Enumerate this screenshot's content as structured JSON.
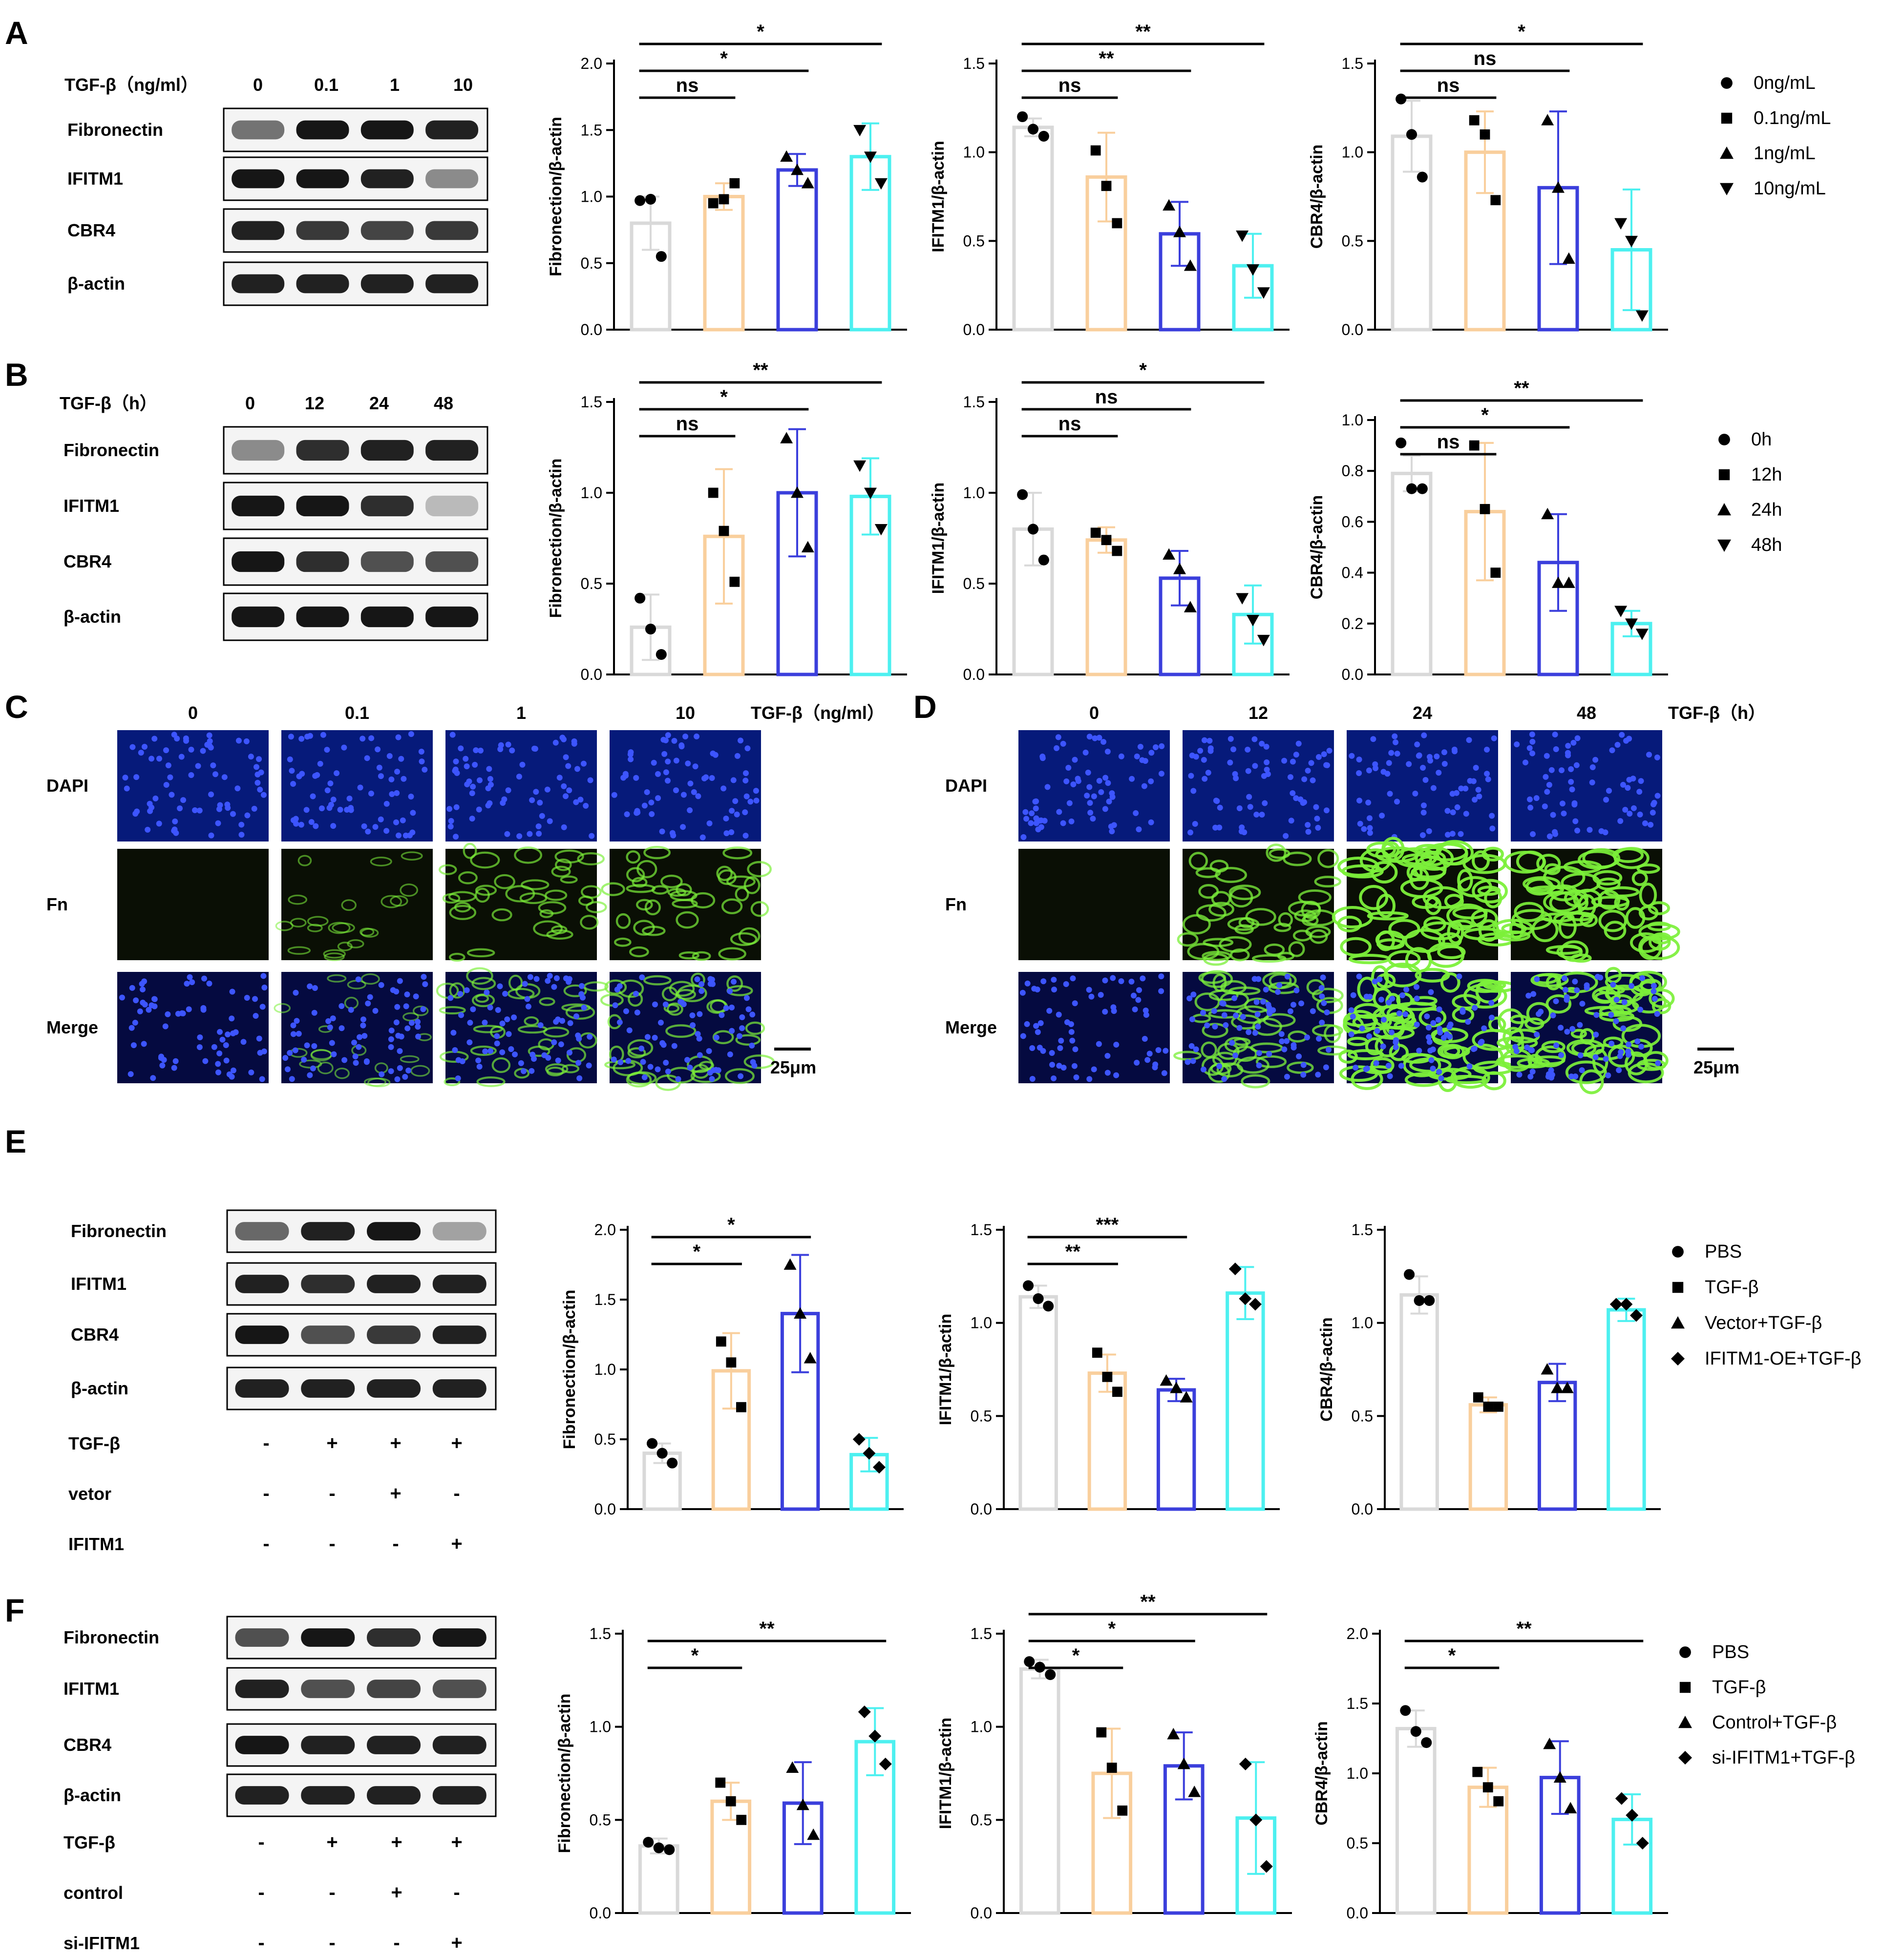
{
  "figure": {
    "colors": {
      "bar1": "#d9d9d9",
      "bar2": "#f9cf9d",
      "bar3": "#3b3fdc",
      "bar4": "#4df0f0",
      "dapi_bg": "#061a7a",
      "dapi_nuc": "#3d55ff",
      "fn_green": "#7cf03a"
    },
    "panel_A": {
      "letter": "A",
      "header_label": "TGF-β（ng/ml）",
      "lanes": [
        "0",
        "0.1",
        "1",
        "10"
      ],
      "rows": [
        "Fibronectin",
        "IFITM1",
        "CBR4",
        "β-actin"
      ],
      "legend": [
        "0ng/mL",
        "0.1ng/mL",
        "1ng/mL",
        "10ng/mL"
      ]
    },
    "panel_B": {
      "letter": "B",
      "header_label": "TGF-β（h）",
      "lanes": [
        "0",
        "12",
        "24",
        "48"
      ],
      "rows": [
        "Fibronectin",
        "IFITM1",
        "CBR4",
        "β-actin"
      ],
      "legend": [
        "0h",
        "12h",
        "24h",
        "48h"
      ]
    },
    "panel_C": {
      "letter": "C",
      "columns": [
        "0",
        "0.1",
        "1",
        "10"
      ],
      "header_label": "TGF-β（ng/ml）",
      "rows": [
        "DAPI",
        "Fn",
        "Merge"
      ],
      "fn_intensity": [
        0.04,
        0.35,
        0.55,
        0.6
      ],
      "scalebar": "25μm"
    },
    "panel_D": {
      "letter": "D",
      "columns": [
        "0",
        "12",
        "24",
        "48"
      ],
      "header_label": "TGF-β（h）",
      "rows": [
        "DAPI",
        "Fn",
        "Merge"
      ],
      "fn_intensity": [
        0.04,
        0.7,
        1.0,
        0.95
      ],
      "scalebar": "25μm"
    },
    "panel_E": {
      "letter": "E",
      "rows": [
        "Fibronectin",
        "IFITM1",
        "CBR4",
        "β-actin"
      ],
      "treatments": [
        {
          "label": "TGF-β",
          "marks": [
            "-",
            "+",
            "+",
            "+"
          ]
        },
        {
          "label": "vetor",
          "marks": [
            "-",
            "-",
            "+",
            "-"
          ]
        },
        {
          "label": "IFITM1",
          "marks": [
            "-",
            "-",
            "-",
            "+"
          ]
        }
      ],
      "legend": [
        "PBS",
        "TGF-β",
        "Vector+TGF-β",
        "IFITM1-OE+TGF-β"
      ]
    },
    "panel_F": {
      "letter": "F",
      "rows": [
        "Fibronectin",
        "IFITM1",
        "CBR4",
        "β-actin"
      ],
      "treatments": [
        {
          "label": "TGF-β",
          "marks": [
            "-",
            "+",
            "+",
            "+"
          ]
        },
        {
          "label": "control",
          "marks": [
            "-",
            "-",
            "+",
            "-"
          ]
        },
        {
          "label": "si-IFITM1",
          "marks": [
            "-",
            "-",
            "-",
            "+"
          ]
        }
      ],
      "legend": [
        "PBS",
        "TGF-β",
        "Control+TGF-β",
        "si-IFITM1+TGF-β"
      ]
    }
  },
  "chart_data": [
    {
      "id": "A1",
      "type": "bar",
      "ylabel": "Fibronection/β-actin",
      "ylim": [
        0,
        2.0
      ],
      "yticks": [
        0,
        0.5,
        1.0,
        1.5,
        2.0
      ],
      "values": [
        0.8,
        1.0,
        1.2,
        1.3
      ],
      "errors": [
        0.2,
        0.1,
        0.12,
        0.25
      ],
      "points": [
        [
          0.97,
          0.98,
          0.55
        ],
        [
          0.95,
          0.98,
          1.1
        ],
        [
          1.3,
          1.2,
          1.1
        ],
        [
          1.5,
          1.3,
          1.1
        ]
      ],
      "sig": [
        {
          "from": 0,
          "to": 1,
          "label": "ns"
        },
        {
          "from": 0,
          "to": 2,
          "label": "*"
        },
        {
          "from": 0,
          "to": 3,
          "label": "*"
        }
      ]
    },
    {
      "id": "A2",
      "type": "bar",
      "ylabel": "IFITM1/β-actin",
      "ylim": [
        0,
        1.5
      ],
      "yticks": [
        0,
        0.5,
        1.0,
        1.5
      ],
      "values": [
        1.14,
        0.86,
        0.54,
        0.36
      ],
      "errors": [
        0.05,
        0.25,
        0.18,
        0.18
      ],
      "points": [
        [
          1.2,
          1.13,
          1.09
        ],
        [
          1.01,
          0.81,
          0.6
        ],
        [
          0.7,
          0.55,
          0.36
        ],
        [
          0.53,
          0.34,
          0.21
        ]
      ],
      "sig": [
        {
          "from": 0,
          "to": 1,
          "label": "ns"
        },
        {
          "from": 0,
          "to": 2,
          "label": "**"
        },
        {
          "from": 0,
          "to": 3,
          "label": "**"
        }
      ]
    },
    {
      "id": "A3",
      "type": "bar",
      "ylabel": "CBR4/β-actin",
      "ylim": [
        0,
        1.5
      ],
      "yticks": [
        0,
        0.5,
        1.0,
        1.5
      ],
      "values": [
        1.09,
        1.0,
        0.8,
        0.45
      ],
      "errors": [
        0.2,
        0.23,
        0.43,
        0.34
      ],
      "points": [
        [
          1.3,
          1.1,
          0.86
        ],
        [
          1.18,
          1.1,
          0.73
        ],
        [
          1.18,
          0.8,
          0.4
        ],
        [
          0.6,
          0.5,
          0.08
        ]
      ],
      "sig": [
        {
          "from": 0,
          "to": 1,
          "label": "ns"
        },
        {
          "from": 0,
          "to": 2,
          "label": "ns"
        },
        {
          "from": 0,
          "to": 3,
          "label": "*"
        }
      ]
    },
    {
      "id": "B1",
      "type": "bar",
      "ylabel": "Fibronection/β-actin",
      "ylim": [
        0,
        1.5
      ],
      "yticks": [
        0,
        0.5,
        1.0,
        1.5
      ],
      "values": [
        0.26,
        0.76,
        1.0,
        0.98
      ],
      "errors": [
        0.18,
        0.37,
        0.35,
        0.21
      ],
      "points": [
        [
          0.42,
          0.25,
          0.11
        ],
        [
          1.0,
          0.79,
          0.51
        ],
        [
          1.3,
          1.0,
          0.7
        ],
        [
          1.15,
          1.0,
          0.8
        ]
      ],
      "sig": [
        {
          "from": 0,
          "to": 1,
          "label": "ns"
        },
        {
          "from": 0,
          "to": 2,
          "label": "*"
        },
        {
          "from": 0,
          "to": 3,
          "label": "**"
        }
      ]
    },
    {
      "id": "B2",
      "type": "bar",
      "ylabel": "IFITM1/β-actin",
      "ylim": [
        0,
        1.5
      ],
      "yticks": [
        0,
        0.5,
        1.0,
        1.5
      ],
      "values": [
        0.8,
        0.74,
        0.53,
        0.33
      ],
      "errors": [
        0.2,
        0.07,
        0.15,
        0.16
      ],
      "points": [
        [
          0.99,
          0.8,
          0.63
        ],
        [
          0.78,
          0.74,
          0.68
        ],
        [
          0.66,
          0.58,
          0.37
        ],
        [
          0.42,
          0.3,
          0.19
        ]
      ],
      "sig": [
        {
          "from": 0,
          "to": 1,
          "label": "ns"
        },
        {
          "from": 0,
          "to": 2,
          "label": "ns"
        },
        {
          "from": 0,
          "to": 3,
          "label": "*"
        }
      ]
    },
    {
      "id": "B3",
      "type": "bar",
      "ylabel": "CBR4/β-actin",
      "ylim": [
        0,
        1.0
      ],
      "yticks": [
        0,
        0.2,
        0.4,
        0.6,
        0.8,
        1.0
      ],
      "values": [
        0.79,
        0.64,
        0.44,
        0.2
      ],
      "errors": [
        0.07,
        0.27,
        0.19,
        0.05
      ],
      "points": [
        [
          0.91,
          0.73,
          0.73
        ],
        [
          0.9,
          0.65,
          0.4
        ],
        [
          0.63,
          0.36,
          0.36
        ],
        [
          0.25,
          0.2,
          0.16
        ]
      ],
      "sig": [
        {
          "from": 0,
          "to": 1,
          "label": "ns"
        },
        {
          "from": 0,
          "to": 2,
          "label": "*"
        },
        {
          "from": 0,
          "to": 3,
          "label": "**"
        }
      ]
    },
    {
      "id": "E1",
      "type": "bar",
      "ylabel": "Fibronection/β-actin",
      "ylim": [
        0,
        2.0
      ],
      "yticks": [
        0,
        0.5,
        1.0,
        1.5,
        2.0
      ],
      "values": [
        0.4,
        0.99,
        1.4,
        0.39
      ],
      "errors": [
        0.07,
        0.27,
        0.42,
        0.12
      ],
      "points": [
        [
          0.47,
          0.4,
          0.33
        ],
        [
          1.2,
          1.05,
          0.73
        ],
        [
          1.75,
          1.4,
          1.08
        ],
        [
          0.5,
          0.4,
          0.3
        ]
      ],
      "sig": [
        {
          "from": 0,
          "to": 1,
          "label": "*"
        },
        {
          "from": 0,
          "to": 2,
          "label": "*"
        }
      ]
    },
    {
      "id": "E2",
      "type": "bar",
      "ylabel": "IFITM1/β-actin",
      "ylim": [
        0,
        1.5
      ],
      "yticks": [
        0,
        0.5,
        1.0,
        1.5
      ],
      "values": [
        1.14,
        0.73,
        0.64,
        1.16
      ],
      "errors": [
        0.06,
        0.1,
        0.06,
        0.14
      ],
      "points": [
        [
          1.2,
          1.13,
          1.09
        ],
        [
          0.84,
          0.71,
          0.63
        ],
        [
          0.69,
          0.65,
          0.6
        ],
        [
          1.29,
          1.13,
          1.1
        ]
      ],
      "sig": [
        {
          "from": 0,
          "to": 1,
          "label": "**"
        },
        {
          "from": 0,
          "to": 2,
          "label": "***"
        }
      ]
    },
    {
      "id": "E3",
      "type": "bar",
      "ylabel": "CBR4/β-actin",
      "ylim": [
        0,
        1.5
      ],
      "yticks": [
        0,
        0.5,
        1.0,
        1.5
      ],
      "values": [
        1.15,
        0.56,
        0.68,
        1.07
      ],
      "errors": [
        0.1,
        0.04,
        0.1,
        0.06
      ],
      "points": [
        [
          1.26,
          1.12,
          1.12
        ],
        [
          0.6,
          0.55,
          0.55
        ],
        [
          0.75,
          0.65,
          0.65
        ],
        [
          1.1,
          1.1,
          1.04
        ]
      ],
      "sig": []
    },
    {
      "id": "F1",
      "type": "bar",
      "ylabel": "Fibronection/β-actin",
      "ylim": [
        0,
        1.5
      ],
      "yticks": [
        0,
        0.5,
        1.0,
        1.5
      ],
      "values": [
        0.36,
        0.6,
        0.59,
        0.92
      ],
      "errors": [
        0.04,
        0.1,
        0.22,
        0.18
      ],
      "points": [
        [
          0.38,
          0.35,
          0.34
        ],
        [
          0.7,
          0.6,
          0.5
        ],
        [
          0.78,
          0.58,
          0.42
        ],
        [
          1.08,
          0.95,
          0.8
        ]
      ],
      "sig": [
        {
          "from": 0,
          "to": 1,
          "label": "*"
        },
        {
          "from": 0,
          "to": 3,
          "label": "**"
        }
      ]
    },
    {
      "id": "F2",
      "type": "bar",
      "ylabel": "IFITM1/β-actin",
      "ylim": [
        0,
        1.5
      ],
      "yticks": [
        0,
        0.5,
        1.0,
        1.5
      ],
      "values": [
        1.31,
        0.75,
        0.79,
        0.51
      ],
      "errors": [
        0.05,
        0.24,
        0.18,
        0.3
      ],
      "points": [
        [
          1.35,
          1.32,
          1.28
        ],
        [
          0.97,
          0.78,
          0.55
        ],
        [
          0.96,
          0.8,
          0.65
        ],
        [
          0.8,
          0.5,
          0.25
        ]
      ],
      "sig": [
        {
          "from": 0,
          "to": 1,
          "label": "*"
        },
        {
          "from": 0,
          "to": 2,
          "label": "*"
        },
        {
          "from": 0,
          "to": 3,
          "label": "**"
        }
      ]
    },
    {
      "id": "F3",
      "type": "bar",
      "ylabel": "CBR4/β-actin",
      "ylim": [
        0,
        2.0
      ],
      "yticks": [
        0,
        0.5,
        1.0,
        1.5,
        2.0
      ],
      "values": [
        1.32,
        0.9,
        0.97,
        0.67
      ],
      "errors": [
        0.13,
        0.14,
        0.26,
        0.18
      ],
      "points": [
        [
          1.45,
          1.3,
          1.22
        ],
        [
          1.01,
          0.9,
          0.8
        ],
        [
          1.21,
          0.97,
          0.75
        ],
        [
          0.82,
          0.7,
          0.5
        ]
      ],
      "sig": [
        {
          "from": 0,
          "to": 1,
          "label": "*"
        },
        {
          "from": 0,
          "to": 3,
          "label": "**"
        }
      ]
    }
  ]
}
